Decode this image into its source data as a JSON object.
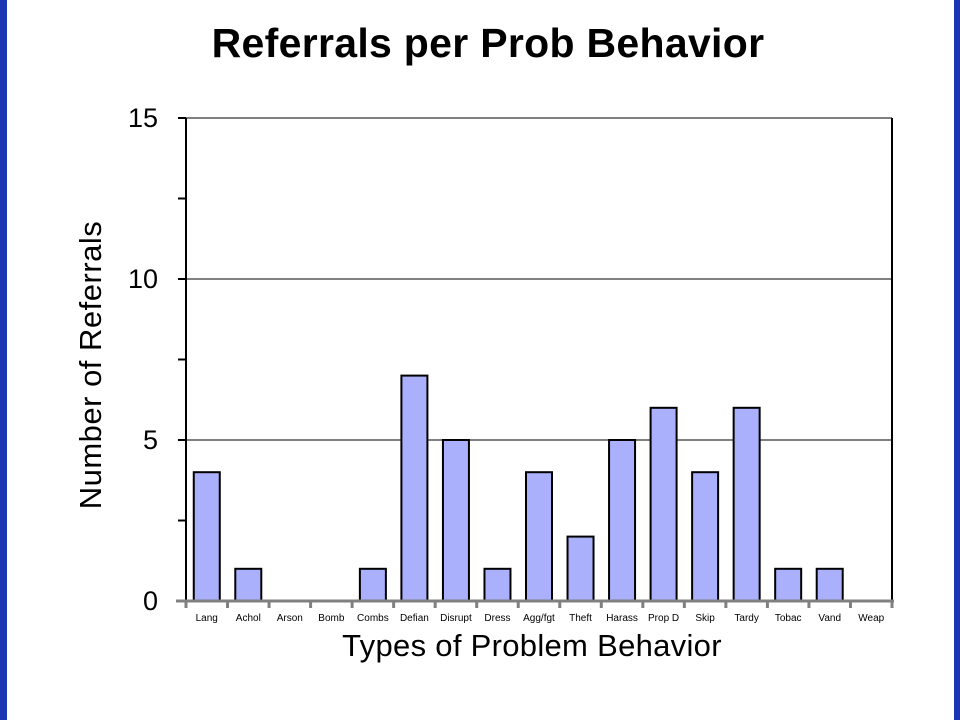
{
  "chart_data": {
    "type": "bar",
    "title": "Referrals per Prob Behavior",
    "xlabel": "Types of Problem Behavior",
    "ylabel": "Number of Referrals",
    "categories": [
      "Lang",
      "Achol",
      "Arson",
      "Bomb",
      "Combs",
      "Defian",
      "Disrupt",
      "Dress",
      "Agg/fgt",
      "Theft",
      "Harass",
      "Prop D",
      "Skip",
      "Tardy",
      "Tobac",
      "Vand",
      "Weap"
    ],
    "values": [
      4,
      1,
      0,
      0,
      1,
      7,
      5,
      1,
      4,
      2,
      5,
      6,
      4,
      6,
      1,
      1,
      0
    ],
    "ylim": [
      0,
      15
    ],
    "yticks": [
      0,
      5,
      10,
      15
    ],
    "grid": true,
    "bar_color": "#aab0fb",
    "frame_color": "#1c35b3"
  }
}
